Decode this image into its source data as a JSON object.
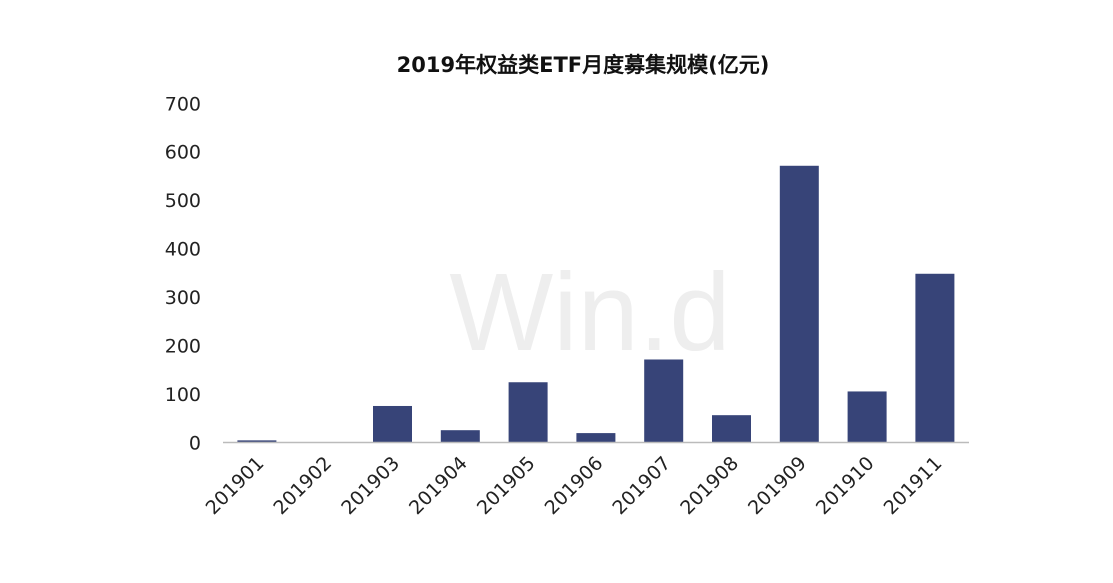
{
  "chart_data": {
    "type": "bar",
    "title": "2019年权益类ETF月度募集规模(亿元)",
    "xlabel": "",
    "ylabel": "",
    "categories": [
      "201901",
      "201902",
      "201903",
      "201904",
      "201905",
      "201906",
      "201907",
      "201908",
      "201909",
      "201910",
      "201911"
    ],
    "values": [
      4,
      0,
      75,
      25,
      124,
      19,
      171,
      56,
      571,
      105,
      348
    ],
    "ylim": [
      0,
      700
    ],
    "yticks": [
      0,
      100,
      200,
      300,
      400,
      500,
      600,
      700
    ],
    "grid": false,
    "legend": "none",
    "bar_color": "#374478",
    "watermark": "Wind"
  }
}
